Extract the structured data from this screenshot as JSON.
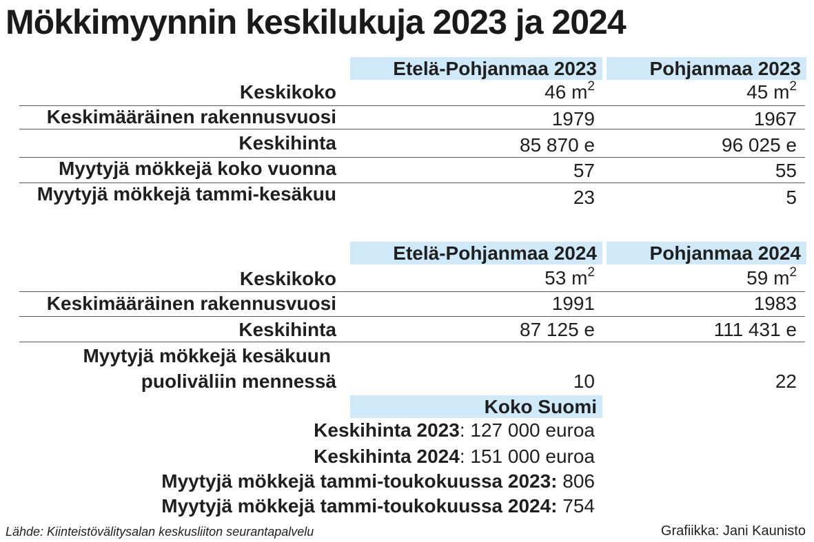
{
  "title": "Mökkimyynnin keskilukuja 2023 ja 2024",
  "table_2023": {
    "headers": [
      "Etelä-Pohjanmaa 2023",
      "Pohjanmaa 2023"
    ],
    "rows": [
      {
        "label": "Keskikoko",
        "v1": "46 m",
        "v1_sup": "2",
        "v2": "45 m",
        "v2_sup": "2"
      },
      {
        "label": "Keskimääräinen rakennusvuosi",
        "v1": "1979",
        "v2": "1967"
      },
      {
        "label": "Keskihinta",
        "v1": "85 870 e",
        "v2": "96 025 e"
      },
      {
        "label": "Myytyjä mökkejä koko vuonna",
        "v1": "57",
        "v2": "55"
      },
      {
        "label": "Myytyjä mökkejä tammi-kesäkuu",
        "v1": "23",
        "v2": "5"
      }
    ]
  },
  "table_2024": {
    "headers": [
      "Etelä-Pohjanmaa 2024",
      "Pohjanmaa 2024"
    ],
    "rows": [
      {
        "label": "Keskikoko",
        "v1": "53 m",
        "v1_sup": "2",
        "v2": "59 m",
        "v2_sup": "2"
      },
      {
        "label": "Keskimääräinen rakennusvuosi",
        "v1": "1991",
        "v2": "1983"
      },
      {
        "label": "Keskihinta",
        "v1": "87 125 e",
        "v2": "111 431 e"
      },
      {
        "label_line1": "Myytyjä mökkejä kesäkuun",
        "label_line2": "puoliväliin mennessä",
        "v1": "10",
        "v2": "22"
      }
    ]
  },
  "koko_suomi": {
    "header": "Koko Suomi",
    "items": [
      {
        "key": "Keskihinta 2023",
        "sep": ": ",
        "value": "127 000 euroa"
      },
      {
        "key": "Keskihinta 2024",
        "sep": ": ",
        "value": "151 000 euroa"
      },
      {
        "key": "Myytyjä mökkejä tammi-toukokuussa 2023:",
        "sep": " ",
        "value": "806"
      },
      {
        "key": "Myytyjä mökkejä tammi-toukokuussa 2024:",
        "sep": " ",
        "value": "754"
      }
    ]
  },
  "source": "Lähde: Kiinteistövälitysalan keskusliiton seurantapalvelu",
  "credit": "Grafiikka: Jani Kaunisto",
  "colors": {
    "header_bg": "#cfe9f8",
    "text": "#1f1f1f"
  }
}
